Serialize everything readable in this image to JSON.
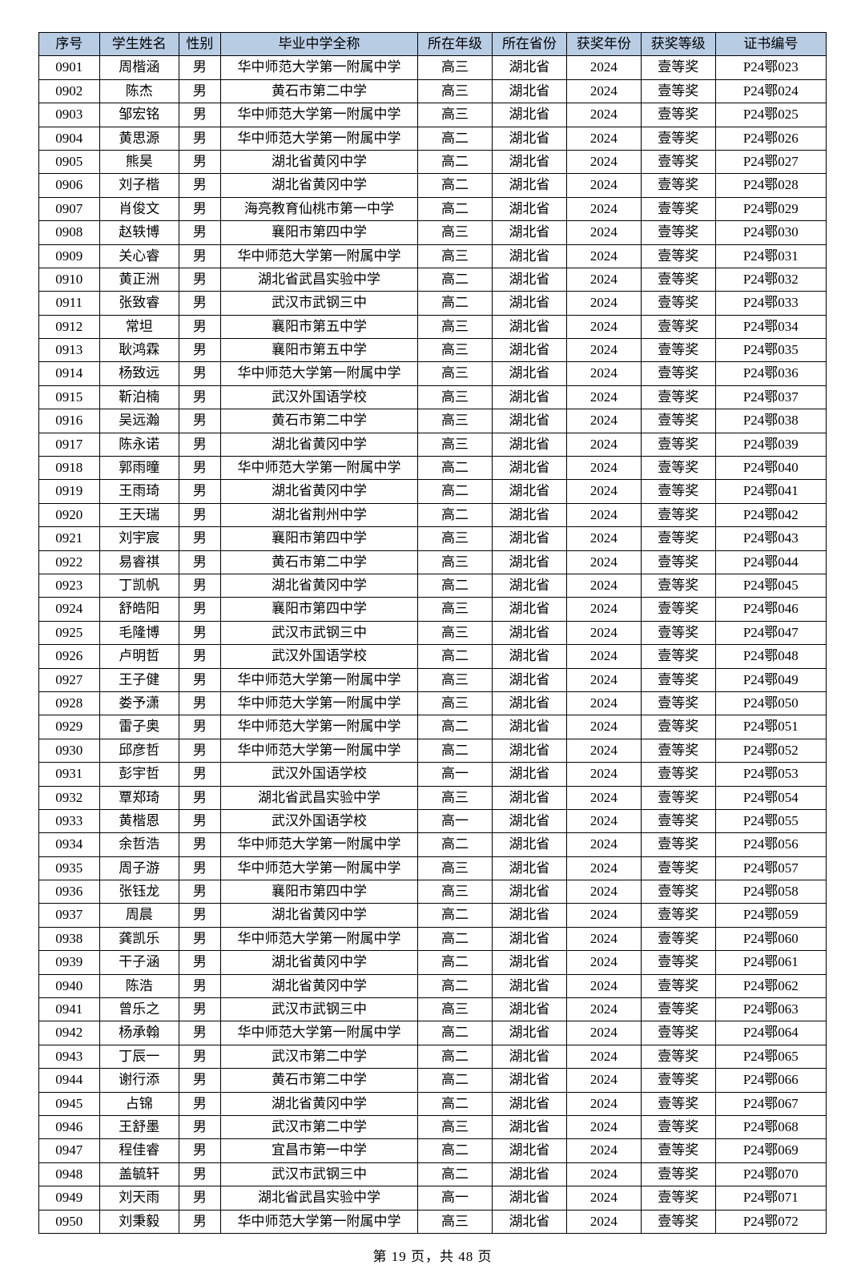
{
  "headers": {
    "seq": "序号",
    "name": "学生姓名",
    "gender": "性别",
    "school": "毕业中学全称",
    "grade": "所在年级",
    "province": "所在省份",
    "year": "获奖年份",
    "award": "获奖等级",
    "cert": "证书编号"
  },
  "rows": [
    {
      "seq": "0901",
      "name": "周楷涵",
      "gender": "男",
      "school": "华中师范大学第一附属中学",
      "grade": "高三",
      "province": "湖北省",
      "year": "2024",
      "award": "壹等奖",
      "cert": "P24鄂023"
    },
    {
      "seq": "0902",
      "name": "陈杰",
      "gender": "男",
      "school": "黄石市第二中学",
      "grade": "高三",
      "province": "湖北省",
      "year": "2024",
      "award": "壹等奖",
      "cert": "P24鄂024"
    },
    {
      "seq": "0903",
      "name": "邹宏铭",
      "gender": "男",
      "school": "华中师范大学第一附属中学",
      "grade": "高三",
      "province": "湖北省",
      "year": "2024",
      "award": "壹等奖",
      "cert": "P24鄂025"
    },
    {
      "seq": "0904",
      "name": "黄思源",
      "gender": "男",
      "school": "华中师范大学第一附属中学",
      "grade": "高二",
      "province": "湖北省",
      "year": "2024",
      "award": "壹等奖",
      "cert": "P24鄂026"
    },
    {
      "seq": "0905",
      "name": "熊昊",
      "gender": "男",
      "school": "湖北省黄冈中学",
      "grade": "高二",
      "province": "湖北省",
      "year": "2024",
      "award": "壹等奖",
      "cert": "P24鄂027"
    },
    {
      "seq": "0906",
      "name": "刘子楷",
      "gender": "男",
      "school": "湖北省黄冈中学",
      "grade": "高二",
      "province": "湖北省",
      "year": "2024",
      "award": "壹等奖",
      "cert": "P24鄂028"
    },
    {
      "seq": "0907",
      "name": "肖俊文",
      "gender": "男",
      "school": "海亮教育仙桃市第一中学",
      "grade": "高二",
      "province": "湖北省",
      "year": "2024",
      "award": "壹等奖",
      "cert": "P24鄂029"
    },
    {
      "seq": "0908",
      "name": "赵轶博",
      "gender": "男",
      "school": "襄阳市第四中学",
      "grade": "高三",
      "province": "湖北省",
      "year": "2024",
      "award": "壹等奖",
      "cert": "P24鄂030"
    },
    {
      "seq": "0909",
      "name": "关心睿",
      "gender": "男",
      "school": "华中师范大学第一附属中学",
      "grade": "高三",
      "province": "湖北省",
      "year": "2024",
      "award": "壹等奖",
      "cert": "P24鄂031"
    },
    {
      "seq": "0910",
      "name": "黄正洲",
      "gender": "男",
      "school": "湖北省武昌实验中学",
      "grade": "高二",
      "province": "湖北省",
      "year": "2024",
      "award": "壹等奖",
      "cert": "P24鄂032"
    },
    {
      "seq": "0911",
      "name": "张致睿",
      "gender": "男",
      "school": "武汉市武钢三中",
      "grade": "高二",
      "province": "湖北省",
      "year": "2024",
      "award": "壹等奖",
      "cert": "P24鄂033"
    },
    {
      "seq": "0912",
      "name": "常坦",
      "gender": "男",
      "school": "襄阳市第五中学",
      "grade": "高三",
      "province": "湖北省",
      "year": "2024",
      "award": "壹等奖",
      "cert": "P24鄂034"
    },
    {
      "seq": "0913",
      "name": "耿鸿霖",
      "gender": "男",
      "school": "襄阳市第五中学",
      "grade": "高三",
      "province": "湖北省",
      "year": "2024",
      "award": "壹等奖",
      "cert": "P24鄂035"
    },
    {
      "seq": "0914",
      "name": "杨致远",
      "gender": "男",
      "school": "华中师范大学第一附属中学",
      "grade": "高三",
      "province": "湖北省",
      "year": "2024",
      "award": "壹等奖",
      "cert": "P24鄂036"
    },
    {
      "seq": "0915",
      "name": "靳泊楠",
      "gender": "男",
      "school": "武汉外国语学校",
      "grade": "高三",
      "province": "湖北省",
      "year": "2024",
      "award": "壹等奖",
      "cert": "P24鄂037"
    },
    {
      "seq": "0916",
      "name": "吴远瀚",
      "gender": "男",
      "school": "黄石市第二中学",
      "grade": "高三",
      "province": "湖北省",
      "year": "2024",
      "award": "壹等奖",
      "cert": "P24鄂038"
    },
    {
      "seq": "0917",
      "name": "陈永诺",
      "gender": "男",
      "school": "湖北省黄冈中学",
      "grade": "高三",
      "province": "湖北省",
      "year": "2024",
      "award": "壹等奖",
      "cert": "P24鄂039"
    },
    {
      "seq": "0918",
      "name": "郭雨曈",
      "gender": "男",
      "school": "华中师范大学第一附属中学",
      "grade": "高二",
      "province": "湖北省",
      "year": "2024",
      "award": "壹等奖",
      "cert": "P24鄂040"
    },
    {
      "seq": "0919",
      "name": "王雨琦",
      "gender": "男",
      "school": "湖北省黄冈中学",
      "grade": "高二",
      "province": "湖北省",
      "year": "2024",
      "award": "壹等奖",
      "cert": "P24鄂041"
    },
    {
      "seq": "0920",
      "name": "王天瑞",
      "gender": "男",
      "school": "湖北省荆州中学",
      "grade": "高二",
      "province": "湖北省",
      "year": "2024",
      "award": "壹等奖",
      "cert": "P24鄂042"
    },
    {
      "seq": "0921",
      "name": "刘宇宸",
      "gender": "男",
      "school": "襄阳市第四中学",
      "grade": "高三",
      "province": "湖北省",
      "year": "2024",
      "award": "壹等奖",
      "cert": "P24鄂043"
    },
    {
      "seq": "0922",
      "name": "易睿祺",
      "gender": "男",
      "school": "黄石市第二中学",
      "grade": "高三",
      "province": "湖北省",
      "year": "2024",
      "award": "壹等奖",
      "cert": "P24鄂044"
    },
    {
      "seq": "0923",
      "name": "丁凯帆",
      "gender": "男",
      "school": "湖北省黄冈中学",
      "grade": "高二",
      "province": "湖北省",
      "year": "2024",
      "award": "壹等奖",
      "cert": "P24鄂045"
    },
    {
      "seq": "0924",
      "name": "舒皓阳",
      "gender": "男",
      "school": "襄阳市第四中学",
      "grade": "高三",
      "province": "湖北省",
      "year": "2024",
      "award": "壹等奖",
      "cert": "P24鄂046"
    },
    {
      "seq": "0925",
      "name": "毛隆博",
      "gender": "男",
      "school": "武汉市武钢三中",
      "grade": "高三",
      "province": "湖北省",
      "year": "2024",
      "award": "壹等奖",
      "cert": "P24鄂047"
    },
    {
      "seq": "0926",
      "name": "卢明哲",
      "gender": "男",
      "school": "武汉外国语学校",
      "grade": "高二",
      "province": "湖北省",
      "year": "2024",
      "award": "壹等奖",
      "cert": "P24鄂048"
    },
    {
      "seq": "0927",
      "name": "王子健",
      "gender": "男",
      "school": "华中师范大学第一附属中学",
      "grade": "高三",
      "province": "湖北省",
      "year": "2024",
      "award": "壹等奖",
      "cert": "P24鄂049"
    },
    {
      "seq": "0928",
      "name": "娄予潇",
      "gender": "男",
      "school": "华中师范大学第一附属中学",
      "grade": "高三",
      "province": "湖北省",
      "year": "2024",
      "award": "壹等奖",
      "cert": "P24鄂050"
    },
    {
      "seq": "0929",
      "name": "雷子奥",
      "gender": "男",
      "school": "华中师范大学第一附属中学",
      "grade": "高二",
      "province": "湖北省",
      "year": "2024",
      "award": "壹等奖",
      "cert": "P24鄂051"
    },
    {
      "seq": "0930",
      "name": "邱彦哲",
      "gender": "男",
      "school": "华中师范大学第一附属中学",
      "grade": "高二",
      "province": "湖北省",
      "year": "2024",
      "award": "壹等奖",
      "cert": "P24鄂052"
    },
    {
      "seq": "0931",
      "name": "彭宇哲",
      "gender": "男",
      "school": "武汉外国语学校",
      "grade": "高一",
      "province": "湖北省",
      "year": "2024",
      "award": "壹等奖",
      "cert": "P24鄂053"
    },
    {
      "seq": "0932",
      "name": "覃郑琦",
      "gender": "男",
      "school": "湖北省武昌实验中学",
      "grade": "高三",
      "province": "湖北省",
      "year": "2024",
      "award": "壹等奖",
      "cert": "P24鄂054"
    },
    {
      "seq": "0933",
      "name": "黄楷恩",
      "gender": "男",
      "school": "武汉外国语学校",
      "grade": "高一",
      "province": "湖北省",
      "year": "2024",
      "award": "壹等奖",
      "cert": "P24鄂055"
    },
    {
      "seq": "0934",
      "name": "余哲浩",
      "gender": "男",
      "school": "华中师范大学第一附属中学",
      "grade": "高二",
      "province": "湖北省",
      "year": "2024",
      "award": "壹等奖",
      "cert": "P24鄂056"
    },
    {
      "seq": "0935",
      "name": "周子游",
      "gender": "男",
      "school": "华中师范大学第一附属中学",
      "grade": "高三",
      "province": "湖北省",
      "year": "2024",
      "award": "壹等奖",
      "cert": "P24鄂057"
    },
    {
      "seq": "0936",
      "name": "张钰龙",
      "gender": "男",
      "school": "襄阳市第四中学",
      "grade": "高三",
      "province": "湖北省",
      "year": "2024",
      "award": "壹等奖",
      "cert": "P24鄂058"
    },
    {
      "seq": "0937",
      "name": "周晨",
      "gender": "男",
      "school": "湖北省黄冈中学",
      "grade": "高二",
      "province": "湖北省",
      "year": "2024",
      "award": "壹等奖",
      "cert": "P24鄂059"
    },
    {
      "seq": "0938",
      "name": "龚凯乐",
      "gender": "男",
      "school": "华中师范大学第一附属中学",
      "grade": "高二",
      "province": "湖北省",
      "year": "2024",
      "award": "壹等奖",
      "cert": "P24鄂060"
    },
    {
      "seq": "0939",
      "name": "干子涵",
      "gender": "男",
      "school": "湖北省黄冈中学",
      "grade": "高二",
      "province": "湖北省",
      "year": "2024",
      "award": "壹等奖",
      "cert": "P24鄂061"
    },
    {
      "seq": "0940",
      "name": "陈浩",
      "gender": "男",
      "school": "湖北省黄冈中学",
      "grade": "高二",
      "province": "湖北省",
      "year": "2024",
      "award": "壹等奖",
      "cert": "P24鄂062"
    },
    {
      "seq": "0941",
      "name": "曾乐之",
      "gender": "男",
      "school": "武汉市武钢三中",
      "grade": "高三",
      "province": "湖北省",
      "year": "2024",
      "award": "壹等奖",
      "cert": "P24鄂063"
    },
    {
      "seq": "0942",
      "name": "杨承翰",
      "gender": "男",
      "school": "华中师范大学第一附属中学",
      "grade": "高二",
      "province": "湖北省",
      "year": "2024",
      "award": "壹等奖",
      "cert": "P24鄂064"
    },
    {
      "seq": "0943",
      "name": "丁辰一",
      "gender": "男",
      "school": "武汉市第二中学",
      "grade": "高二",
      "province": "湖北省",
      "year": "2024",
      "award": "壹等奖",
      "cert": "P24鄂065"
    },
    {
      "seq": "0944",
      "name": "谢行添",
      "gender": "男",
      "school": "黄石市第二中学",
      "grade": "高二",
      "province": "湖北省",
      "year": "2024",
      "award": "壹等奖",
      "cert": "P24鄂066"
    },
    {
      "seq": "0945",
      "name": "占锦",
      "gender": "男",
      "school": "湖北省黄冈中学",
      "grade": "高二",
      "province": "湖北省",
      "year": "2024",
      "award": "壹等奖",
      "cert": "P24鄂067"
    },
    {
      "seq": "0946",
      "name": "王舒墨",
      "gender": "男",
      "school": "武汉市第二中学",
      "grade": "高三",
      "province": "湖北省",
      "year": "2024",
      "award": "壹等奖",
      "cert": "P24鄂068"
    },
    {
      "seq": "0947",
      "name": "程佳睿",
      "gender": "男",
      "school": "宜昌市第一中学",
      "grade": "高二",
      "province": "湖北省",
      "year": "2024",
      "award": "壹等奖",
      "cert": "P24鄂069"
    },
    {
      "seq": "0948",
      "name": "盖毓轩",
      "gender": "男",
      "school": "武汉市武钢三中",
      "grade": "高二",
      "province": "湖北省",
      "year": "2024",
      "award": "壹等奖",
      "cert": "P24鄂070"
    },
    {
      "seq": "0949",
      "name": "刘天雨",
      "gender": "男",
      "school": "湖北省武昌实验中学",
      "grade": "高一",
      "province": "湖北省",
      "year": "2024",
      "award": "壹等奖",
      "cert": "P24鄂071"
    },
    {
      "seq": "0950",
      "name": "刘秉毅",
      "gender": "男",
      "school": "华中师范大学第一附属中学",
      "grade": "高三",
      "province": "湖北省",
      "year": "2024",
      "award": "壹等奖",
      "cert": "P24鄂072"
    }
  ],
  "footer": "第 19 页，共 48 页"
}
